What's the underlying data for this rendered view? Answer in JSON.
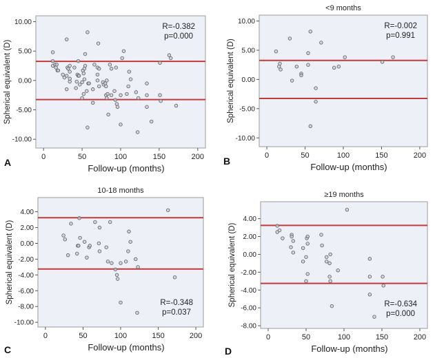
{
  "chart_data": [
    {
      "type": "scatter",
      "panel_label": "A",
      "title": "",
      "xlabel": "Follow-up (months)",
      "ylabel": "Spherical equivalent (D)",
      "xlim": [
        -10,
        210
      ],
      "ylim": [
        -11.5,
        11
      ],
      "xticks": [
        0,
        50,
        100,
        150,
        200
      ],
      "xtick_labels": [
        "0",
        "50",
        "100",
        "150",
        "200"
      ],
      "yticks": [
        10,
        5,
        0,
        -5,
        -10
      ],
      "ytick_labels": [
        "10.00",
        "5.00",
        "0.00",
        "-5.00",
        "-10.00"
      ],
      "reference_lines": [
        3.25,
        -3.25
      ],
      "annotation": {
        "r": "R=-0.382",
        "p": "p=0.000",
        "position": "top-right"
      },
      "grid": false,
      "points": [
        [
          12,
          4.8
        ],
        [
          12,
          3.3
        ],
        [
          12,
          2.5
        ],
        [
          15,
          2.7
        ],
        [
          16,
          2.2
        ],
        [
          17,
          2.7
        ],
        [
          18,
          1.7
        ],
        [
          19,
          1.7
        ],
        [
          25,
          1.0
        ],
        [
          27,
          0.5
        ],
        [
          30,
          7.0
        ],
        [
          30,
          0.8
        ],
        [
          30,
          -1.5
        ],
        [
          31,
          2.2
        ],
        [
          32,
          2.0
        ],
        [
          34,
          2.5
        ],
        [
          34,
          1.5
        ],
        [
          34,
          0.3
        ],
        [
          34,
          -0.2
        ],
        [
          40,
          2.2
        ],
        [
          42,
          -1.3
        ],
        [
          43,
          -0.2
        ],
        [
          44,
          1.0
        ],
        [
          45,
          0.8
        ],
        [
          45,
          3.3
        ],
        [
          46,
          0.8
        ],
        [
          47,
          -0.7
        ],
        [
          50,
          -3.0
        ],
        [
          50,
          -0.3
        ],
        [
          51,
          1.7
        ],
        [
          52,
          1.2
        ],
        [
          52,
          -2.3
        ],
        [
          53,
          2.0
        ],
        [
          53,
          0.2
        ],
        [
          54,
          4.5
        ],
        [
          54,
          2.5
        ],
        [
          56,
          -1.8
        ],
        [
          57,
          8.2
        ],
        [
          57,
          -8.0
        ],
        [
          58,
          -0.5
        ],
        [
          59,
          -0.5
        ],
        [
          64,
          -1.5
        ],
        [
          64,
          -3.8
        ],
        [
          66,
          2.7
        ],
        [
          70,
          2.2
        ],
        [
          70,
          1.0
        ],
        [
          70,
          0.0
        ],
        [
          71,
          6.3
        ],
        [
          72,
          2.0
        ],
        [
          72,
          -1.0
        ],
        [
          77,
          -0.3
        ],
        [
          78,
          -0.7
        ],
        [
          80,
          -0.5
        ],
        [
          81,
          -1.0
        ],
        [
          81,
          -2.5
        ],
        [
          82,
          0.0
        ],
        [
          82,
          -3.0
        ],
        [
          83,
          -2.3
        ],
        [
          84,
          -5.8
        ],
        [
          86,
          2.7
        ],
        [
          88,
          2.0
        ],
        [
          88,
          -2.5
        ],
        [
          92,
          -1.8
        ],
        [
          93,
          -3.3
        ],
        [
          94,
          2.2
        ],
        [
          95,
          -4.0
        ],
        [
          96,
          -4.5
        ],
        [
          100,
          -2.5
        ],
        [
          100,
          -7.5
        ],
        [
          102,
          3.8
        ],
        [
          104,
          5.0
        ],
        [
          108,
          -2.3
        ],
        [
          110,
          -1.0
        ],
        [
          111,
          1.5
        ],
        [
          113,
          0.2
        ],
        [
          120,
          -2.0
        ],
        [
          122,
          -8.8
        ],
        [
          123,
          -3.0
        ],
        [
          134,
          -0.5
        ],
        [
          134,
          -2.5
        ],
        [
          134,
          -4.5
        ],
        [
          140,
          -7.0
        ],
        [
          151,
          3.0
        ],
        [
          151,
          -2.5
        ],
        [
          152,
          -3.5
        ],
        [
          163,
          4.3
        ],
        [
          165,
          3.8
        ],
        [
          172,
          -4.3
        ]
      ]
    },
    {
      "type": "scatter",
      "panel_label": "B",
      "title": "<9 months",
      "xlabel": "Follow-up (months)",
      "ylabel": "Spherical equivalent (D)",
      "xlim": [
        -10,
        210
      ],
      "ylim": [
        -11.5,
        11
      ],
      "xticks": [
        0,
        50,
        100,
        150,
        200
      ],
      "xtick_labels": [
        "0",
        "50",
        "100",
        "150",
        "200"
      ],
      "yticks": [
        10,
        5,
        0,
        -5,
        -10
      ],
      "ytick_labels": [
        "10.00",
        "5.00",
        "0.00",
        "-5.00",
        "-10.00"
      ],
      "reference_lines": [
        3.25,
        -3.25
      ],
      "annotation": {
        "r": "R=-0.002",
        "p": "p=0.991",
        "position": "top-right"
      },
      "grid": false,
      "points": [
        [
          12,
          4.8
        ],
        [
          17,
          2.7
        ],
        [
          16,
          2.2
        ],
        [
          18,
          1.7
        ],
        [
          30,
          7.0
        ],
        [
          33,
          -0.2
        ],
        [
          39,
          2.2
        ],
        [
          45,
          1.0
        ],
        [
          45,
          0.7
        ],
        [
          54,
          4.5
        ],
        [
          54,
          2.5
        ],
        [
          57,
          8.2
        ],
        [
          57,
          -8.0
        ],
        [
          64,
          -1.5
        ],
        [
          64,
          -3.8
        ],
        [
          71,
          6.3
        ],
        [
          88,
          2.0
        ],
        [
          94,
          2.2
        ],
        [
          102,
          3.8
        ],
        [
          151,
          3.0
        ],
        [
          165,
          3.8
        ]
      ]
    },
    {
      "type": "scatter",
      "panel_label": "C",
      "title": "10-18 months",
      "xlabel": "Follow-up (months)",
      "ylabel": "Spherical equivalent (D)",
      "xlim": [
        -10,
        210
      ],
      "ylim": [
        -10.6,
        5.8
      ],
      "xticks": [
        0,
        50,
        100,
        150,
        200
      ],
      "xtick_labels": [
        "0",
        "50",
        "100",
        "150",
        "200"
      ],
      "yticks": [
        4,
        2,
        0,
        -2,
        -4,
        -6,
        -8,
        -10
      ],
      "ytick_labels": [
        "4.00",
        "2.00",
        "0.00",
        "-2.00",
        "-4.00",
        "-6.00",
        "-8.00",
        "-10.00"
      ],
      "reference_lines": [
        3.25,
        -3.25
      ],
      "annotation": {
        "r": "R=-0.348",
        "p": "p=0.037",
        "position": "bottom-right"
      },
      "grid": false,
      "points": [
        [
          24,
          1.0
        ],
        [
          26,
          0.5
        ],
        [
          30,
          -1.5
        ],
        [
          34,
          2.5
        ],
        [
          42,
          -1.3
        ],
        [
          43,
          -0.3
        ],
        [
          44,
          -0.3
        ],
        [
          45,
          3.2
        ],
        [
          46,
          0.7
        ],
        [
          52,
          0.2
        ],
        [
          55,
          -1.8
        ],
        [
          58,
          -0.5
        ],
        [
          59,
          -0.3
        ],
        [
          66,
          2.7
        ],
        [
          71,
          0.0
        ],
        [
          72,
          2.0
        ],
        [
          72,
          -1.0
        ],
        [
          81,
          -0.5
        ],
        [
          83,
          -2.3
        ],
        [
          86,
          2.7
        ],
        [
          88,
          -2.5
        ],
        [
          93,
          -3.3
        ],
        [
          95,
          -4.0
        ],
        [
          96,
          -4.5
        ],
        [
          100,
          -2.5
        ],
        [
          100,
          -7.5
        ],
        [
          107,
          -2.3
        ],
        [
          110,
          -1.0
        ],
        [
          111,
          1.5
        ],
        [
          113,
          0.2
        ],
        [
          120,
          -2.0
        ],
        [
          122,
          -8.8
        ],
        [
          123,
          -3.0
        ],
        [
          163,
          4.2
        ],
        [
          172,
          -4.3
        ]
      ]
    },
    {
      "type": "scatter",
      "panel_label": "D",
      "title": "≥19 months",
      "xlabel": "Follow-up (months)",
      "ylabel": "Spherical equivalent (D)",
      "xlim": [
        -10,
        210
      ],
      "ylim": [
        -8.3,
        5.9
      ],
      "xticks": [
        0,
        50,
        100,
        150,
        200
      ],
      "xtick_labels": [
        "0",
        "50",
        "100",
        "150",
        "200"
      ],
      "yticks": [
        4,
        2,
        0,
        -2,
        -4,
        -6,
        -8
      ],
      "ytick_labels": [
        "4.00",
        "2.00",
        "0.00",
        "-2.00",
        "-4.00",
        "-6.00",
        "-8.00"
      ],
      "reference_lines": [
        3.25,
        -3.25
      ],
      "annotation": {
        "r": "R=-0.634",
        "p": "p=0.000",
        "position": "bottom-right"
      },
      "grid": false,
      "points": [
        [
          12,
          3.2
        ],
        [
          12,
          2.5
        ],
        [
          15,
          2.7
        ],
        [
          19,
          1.8
        ],
        [
          30,
          0.8
        ],
        [
          31,
          2.2
        ],
        [
          31,
          2.0
        ],
        [
          33,
          1.5
        ],
        [
          33,
          0.2
        ],
        [
          46,
          0.7
        ],
        [
          46,
          -0.8
        ],
        [
          50,
          -0.3
        ],
        [
          50,
          -3.0
        ],
        [
          51,
          1.8
        ],
        [
          52,
          2.0
        ],
        [
          52,
          1.2
        ],
        [
          52,
          -2.2
        ],
        [
          70,
          2.2
        ],
        [
          71,
          1.0
        ],
        [
          77,
          -0.3
        ],
        [
          77,
          -0.8
        ],
        [
          81,
          -1.0
        ],
        [
          81,
          -2.5
        ],
        [
          82,
          0.0
        ],
        [
          82,
          -3.0
        ],
        [
          84,
          -5.8
        ],
        [
          92,
          -1.8
        ],
        [
          104,
          5.0
        ],
        [
          134,
          -0.5
        ],
        [
          134,
          -2.5
        ],
        [
          134,
          -4.5
        ],
        [
          140,
          -7.0
        ],
        [
          151,
          -2.5
        ],
        [
          152,
          -3.5
        ]
      ]
    }
  ]
}
